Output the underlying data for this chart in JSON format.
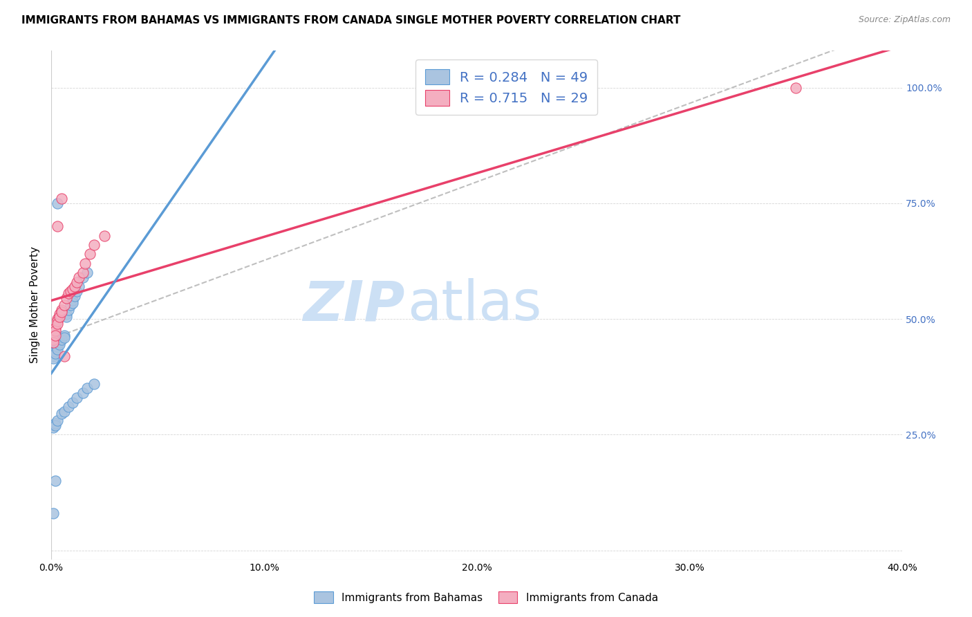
{
  "title": "IMMIGRANTS FROM BAHAMAS VS IMMIGRANTS FROM CANADA SINGLE MOTHER POVERTY CORRELATION CHART",
  "source": "Source: ZipAtlas.com",
  "ylabel": "Single Mother Poverty",
  "legend_label1": "Immigrants from Bahamas",
  "legend_label2": "Immigrants from Canada",
  "R1": 0.284,
  "N1": 49,
  "R2": 0.715,
  "N2": 29,
  "color1": "#aac4e0",
  "color2": "#f4aec0",
  "color1_line": "#5b9bd5",
  "color2_line": "#e8406a",
  "xlim": [
    0.0,
    0.4
  ],
  "ylim": [
    -0.02,
    1.08
  ],
  "xticks": [
    0.0,
    0.1,
    0.2,
    0.3,
    0.4
  ],
  "yticks": [
    0.0,
    0.25,
    0.5,
    0.75,
    1.0
  ],
  "xtick_labels": [
    "0.0%",
    "10.0%",
    "20.0%",
    "30.0%",
    "40.0%"
  ],
  "ytick_labels_right": [
    "",
    "25.0%",
    "50.0%",
    "75.0%",
    "100.0%"
  ],
  "watermark_zip": "ZIP",
  "watermark_atlas": "atlas",
  "watermark_color": "#cce0f5",
  "title_fontsize": 11,
  "axis_color": "#4472c4",
  "bahamas_x": [
    0.001,
    0.001,
    0.001,
    0.001,
    0.001,
    0.001,
    0.002,
    0.002,
    0.002,
    0.002,
    0.002,
    0.003,
    0.003,
    0.003,
    0.003,
    0.004,
    0.004,
    0.004,
    0.005,
    0.005,
    0.006,
    0.006,
    0.007,
    0.007,
    0.008,
    0.009,
    0.01,
    0.01,
    0.011,
    0.012,
    0.013,
    0.015,
    0.017,
    0.001,
    0.001,
    0.002,
    0.002,
    0.003,
    0.005,
    0.006,
    0.008,
    0.01,
    0.012,
    0.015,
    0.017,
    0.02,
    0.001,
    0.002,
    0.003
  ],
  "bahamas_y": [
    0.44,
    0.435,
    0.43,
    0.425,
    0.42,
    0.415,
    0.445,
    0.44,
    0.435,
    0.43,
    0.425,
    0.45,
    0.445,
    0.44,
    0.435,
    0.455,
    0.45,
    0.445,
    0.46,
    0.455,
    0.465,
    0.46,
    0.51,
    0.505,
    0.52,
    0.53,
    0.54,
    0.535,
    0.55,
    0.56,
    0.57,
    0.59,
    0.6,
    0.27,
    0.265,
    0.275,
    0.27,
    0.28,
    0.295,
    0.3,
    0.31,
    0.32,
    0.33,
    0.34,
    0.35,
    0.36,
    0.08,
    0.15,
    0.75
  ],
  "canada_x": [
    0.001,
    0.001,
    0.002,
    0.002,
    0.002,
    0.003,
    0.003,
    0.003,
    0.004,
    0.004,
    0.005,
    0.005,
    0.006,
    0.007,
    0.008,
    0.009,
    0.01,
    0.011,
    0.012,
    0.013,
    0.015,
    0.016,
    0.018,
    0.02,
    0.025,
    0.003,
    0.005,
    0.006,
    0.35
  ],
  "canada_y": [
    0.455,
    0.45,
    0.48,
    0.475,
    0.465,
    0.5,
    0.495,
    0.49,
    0.51,
    0.505,
    0.52,
    0.515,
    0.53,
    0.545,
    0.555,
    0.56,
    0.565,
    0.57,
    0.58,
    0.59,
    0.6,
    0.62,
    0.64,
    0.66,
    0.68,
    0.7,
    0.76,
    0.42,
    1.0
  ]
}
